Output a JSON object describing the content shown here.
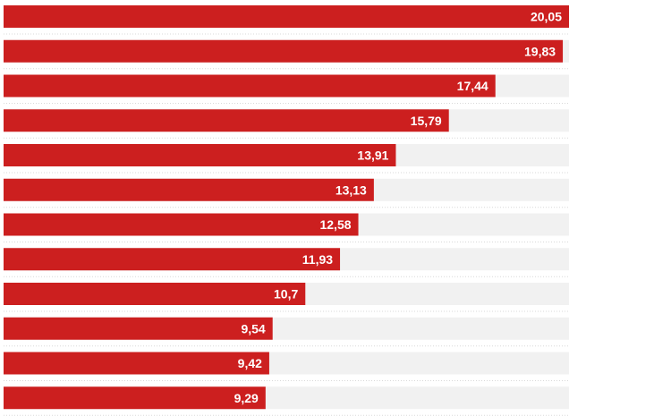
{
  "chart_data": {
    "type": "bar",
    "orientation": "horizontal",
    "values": [
      20.05,
      19.83,
      17.44,
      15.79,
      13.91,
      13.13,
      12.58,
      11.93,
      10.7,
      9.54,
      9.42,
      9.29
    ],
    "value_labels": [
      "20,05",
      "19,83",
      "17,44",
      "15,79",
      "13,91",
      "13,13",
      "12,58",
      "11,93",
      "10,7",
      "9,54",
      "9,42",
      "9,29"
    ],
    "xlim": [
      0,
      20.05
    ],
    "grid": false,
    "legend": "none",
    "colors": {
      "bar": "#cc1f1f",
      "track": "#f1f1f1",
      "label": "#ffffff"
    }
  }
}
